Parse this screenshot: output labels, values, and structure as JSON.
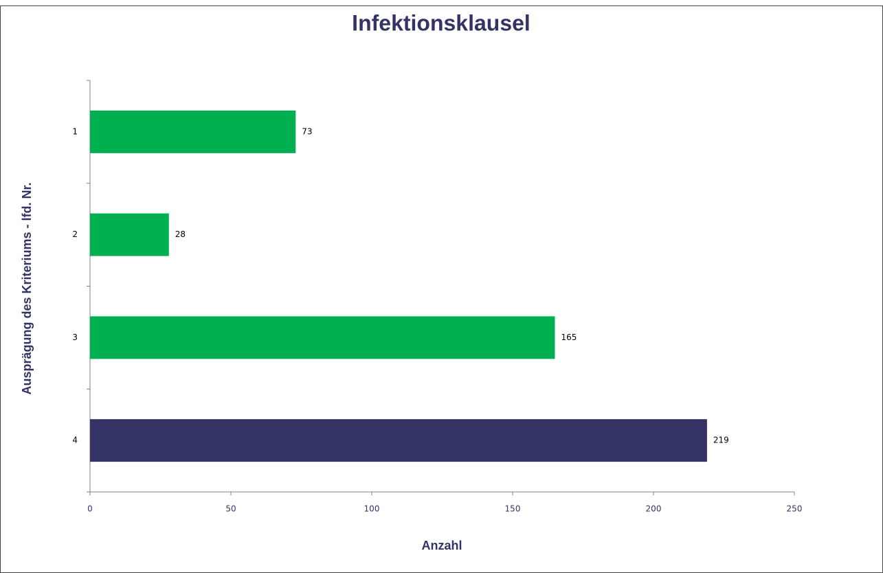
{
  "chart_data": {
    "type": "bar",
    "orientation": "horizontal",
    "title": "Infektionsklausel",
    "x_label": "Anzahl",
    "y_label": "Ausprägung des Kriteriums - lfd. Nr.",
    "categories": [
      "1",
      "2",
      "3",
      "4"
    ],
    "values": [
      73,
      28,
      165,
      219
    ],
    "colors": [
      "#00b050",
      "#00b050",
      "#00b050",
      "#333366"
    ],
    "xlim": [
      0,
      250
    ],
    "xticks": [
      0,
      50,
      100,
      150,
      200,
      250
    ],
    "grid": false
  }
}
